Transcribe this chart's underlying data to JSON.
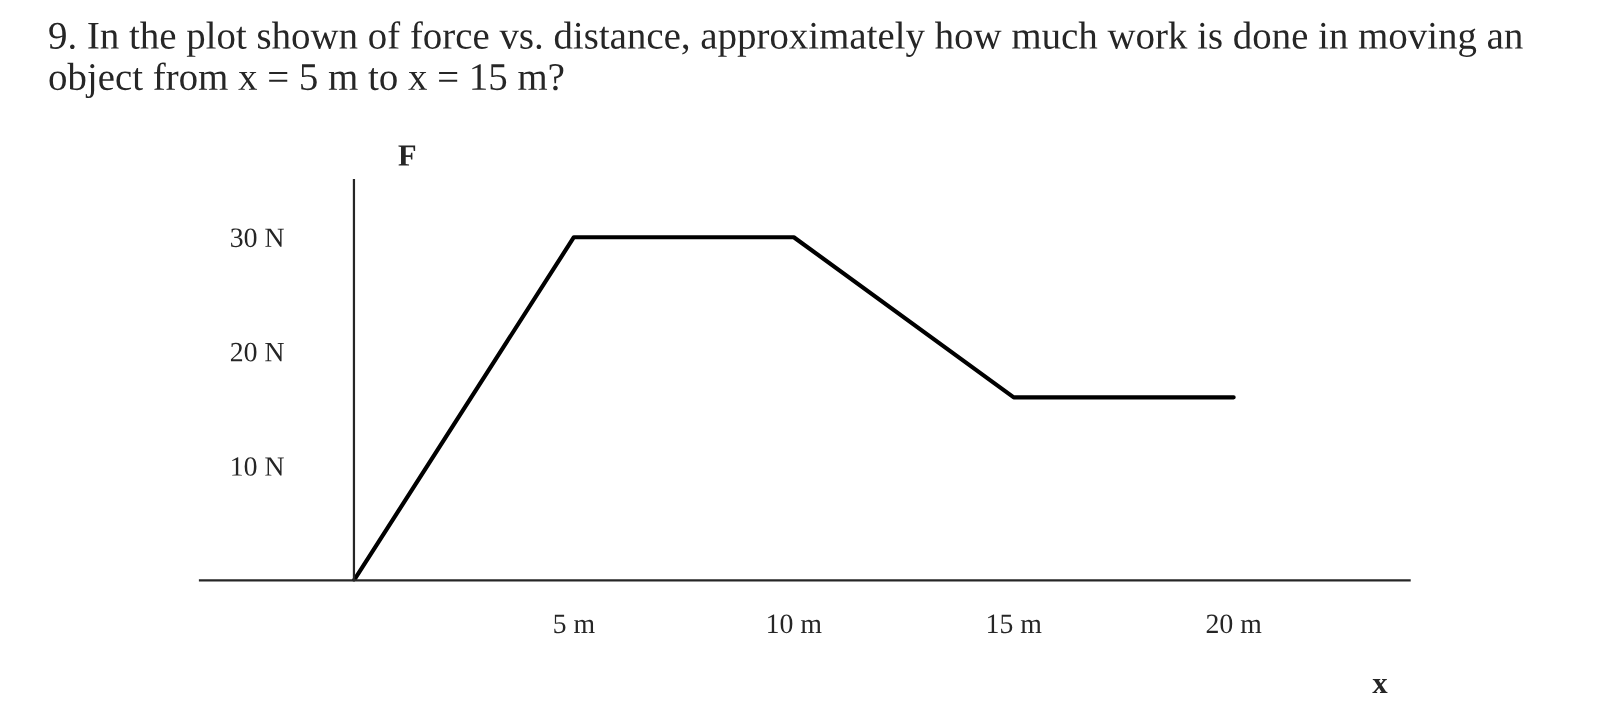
{
  "chart_data": {
    "type": "line",
    "title": "9. In the plot shown of force vs. distance, approximately how much work is done in moving an object from x = 5 m to x = 15 m?",
    "xlabel": "x",
    "ylabel": "F",
    "x": [
      0,
      5,
      10,
      15,
      20
    ],
    "series": [
      {
        "color": "#000000",
        "values": [
          0,
          30,
          30,
          16,
          16
        ]
      }
    ],
    "xlim": [
      -3.5,
      24
    ],
    "ylim": [
      0,
      35
    ],
    "xticks": [
      {
        "value": 5,
        "label": "5 m"
      },
      {
        "value": 10,
        "label": "10 m"
      },
      {
        "value": 15,
        "label": "15 m"
      },
      {
        "value": 20,
        "label": "20 m"
      }
    ],
    "yticks": [
      {
        "value": 10,
        "label": "10 N"
      },
      {
        "value": 20,
        "label": "20 N"
      },
      {
        "value": 30,
        "label": "30 N"
      }
    ],
    "grid": false,
    "legend": false
  }
}
